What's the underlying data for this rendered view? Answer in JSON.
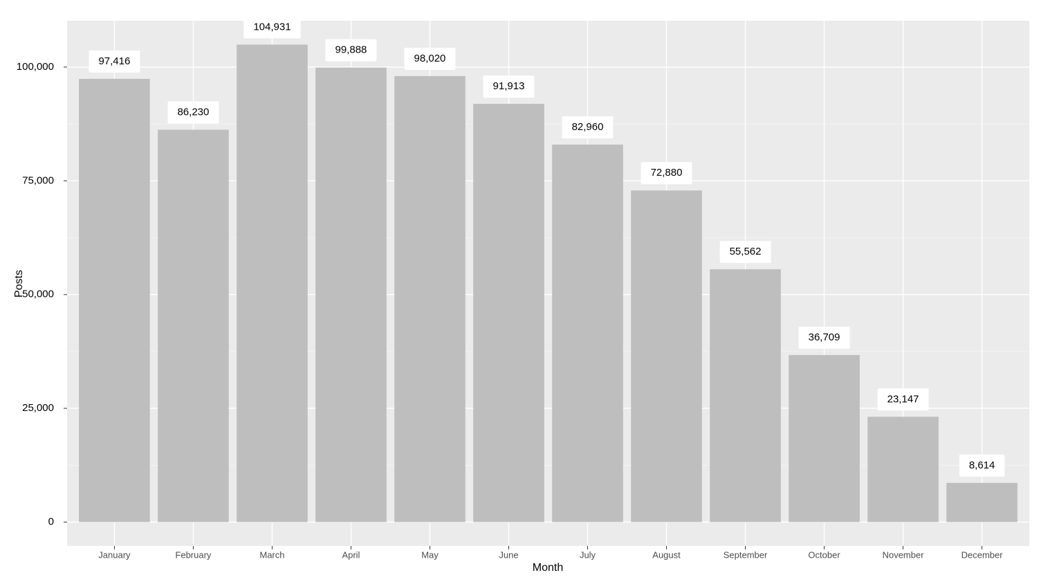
{
  "chart_data": {
    "type": "bar",
    "x_label": "Month",
    "y_label": "Posts",
    "categories": [
      "January",
      "February",
      "March",
      "April",
      "May",
      "June",
      "July",
      "August",
      "September",
      "October",
      "November",
      "December"
    ],
    "values": [
      97416,
      86230,
      104931,
      99888,
      98020,
      91913,
      82960,
      72880,
      55562,
      36709,
      23147,
      8614
    ],
    "value_labels": [
      "97,416",
      "86,230",
      "104,931",
      "99,888",
      "98,020",
      "91,913",
      "82,960",
      "72,880",
      "55,562",
      "36,709",
      "23,147",
      "8,614"
    ],
    "color": "#bebebe",
    "ylim": [
      -5246.55,
      110177.55
    ],
    "yticks": [
      0,
      {
        "value": 25000,
        "label": "25,000"
      },
      {
        "value": 50000,
        "label": "50,000"
      },
      {
        "value": 75000,
        "label": "75,000"
      },
      {
        "value": 100000,
        "label": "100,000"
      }
    ],
    "minor_yticks": [
      12500,
      37500,
      62500,
      87500
    ],
    "grid": true
  }
}
